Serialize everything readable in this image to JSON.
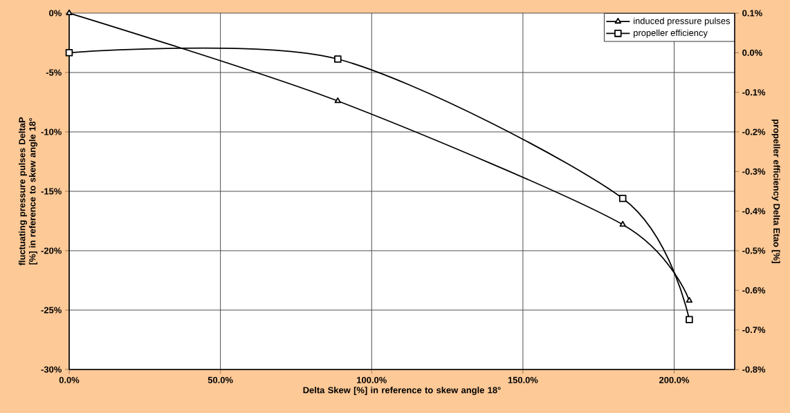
{
  "chart_data": {
    "type": "line",
    "xlabel": "Delta Skew [%] in reference to skew angle 18°",
    "ylabel": "fluctuating pressure pulses DeltaP [%] in reference to skew angle 18°",
    "y2label": "propeller efficiency Delta Etao [%]",
    "x": [
      0,
      88.8,
      183,
      205
    ],
    "series": [
      {
        "name": "induced pressure pulses",
        "color": "#000000",
        "marker": "triangle",
        "values": [
          0,
          -7.4,
          -17.8,
          -24.2
        ]
      },
      {
        "name": "propeller efficiency",
        "color": "#000000",
        "marker": "square",
        "axis": "y2",
        "values": [
          0.0,
          -0.016,
          -0.368,
          -0.674
        ]
      }
    ],
    "xlim": [
      0,
      220
    ],
    "ylim": [
      -30,
      0
    ],
    "y2lim": [
      -0.8,
      0.1
    ],
    "xticks": [
      {
        "value": 0,
        "label": "0.0%"
      },
      {
        "value": 50,
        "label": "50.0%"
      },
      {
        "value": 100,
        "label": "100.0%"
      },
      {
        "value": 150,
        "label": "150.0%"
      },
      {
        "value": 200,
        "label": "200.0%"
      }
    ],
    "yticks": [
      {
        "value": -30,
        "label": "-30%"
      },
      {
        "value": -25,
        "label": "-25%"
      },
      {
        "value": -20,
        "label": "-20%"
      },
      {
        "value": -15,
        "label": "-15%"
      },
      {
        "value": -10,
        "label": "-10%"
      },
      {
        "value": -5,
        "label": "-5%"
      },
      {
        "value": 0,
        "label": "0%"
      }
    ],
    "y2ticks": [
      {
        "value": -0.8,
        "label": "-0.8%"
      },
      {
        "value": -0.7,
        "label": "-0.7%"
      },
      {
        "value": -0.6,
        "label": "-0.6%"
      },
      {
        "value": -0.5,
        "label": "-0.5%"
      },
      {
        "value": -0.4,
        "label": "-0.4%"
      },
      {
        "value": -0.3,
        "label": "-0.3%"
      },
      {
        "value": -0.2,
        "label": "-0.2%"
      },
      {
        "value": -0.1,
        "label": "-0.1%"
      },
      {
        "value": 0.0,
        "label": "0.0%"
      },
      {
        "value": 0.1,
        "label": "0.1%"
      }
    ],
    "grid": true,
    "legend": "top right",
    "line_style": "solid"
  }
}
